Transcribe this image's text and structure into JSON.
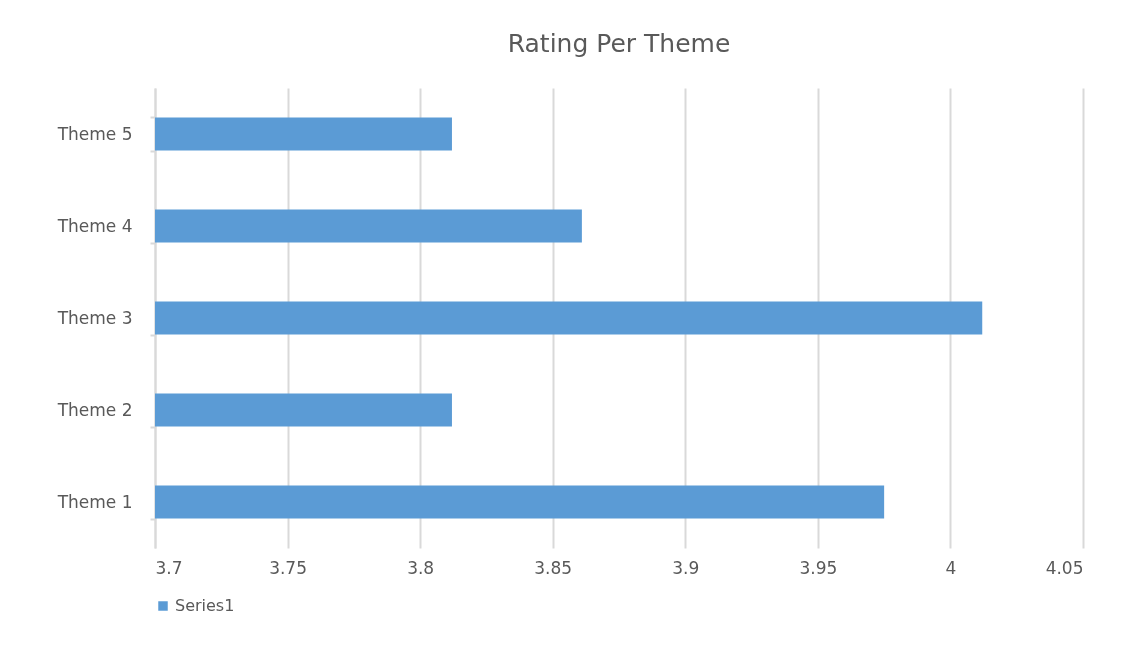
{
  "chart_data": {
    "type": "bar",
    "orientation": "horizontal",
    "title": "Rating Per Theme",
    "categories": [
      "Theme 5",
      "Theme 4",
      "Theme 3",
      "Theme 2",
      "Theme 1"
    ],
    "series": [
      {
        "name": "Series1",
        "color": "#5b9bd5",
        "values": [
          3.812,
          3.861,
          4.012,
          3.812,
          3.975
        ]
      }
    ],
    "xlim": [
      3.7,
      4.05
    ],
    "xticks": [
      3.7,
      3.75,
      3.8,
      3.85,
      3.9,
      3.95,
      4,
      4.05
    ],
    "grid": "x",
    "legend": "bottom"
  }
}
